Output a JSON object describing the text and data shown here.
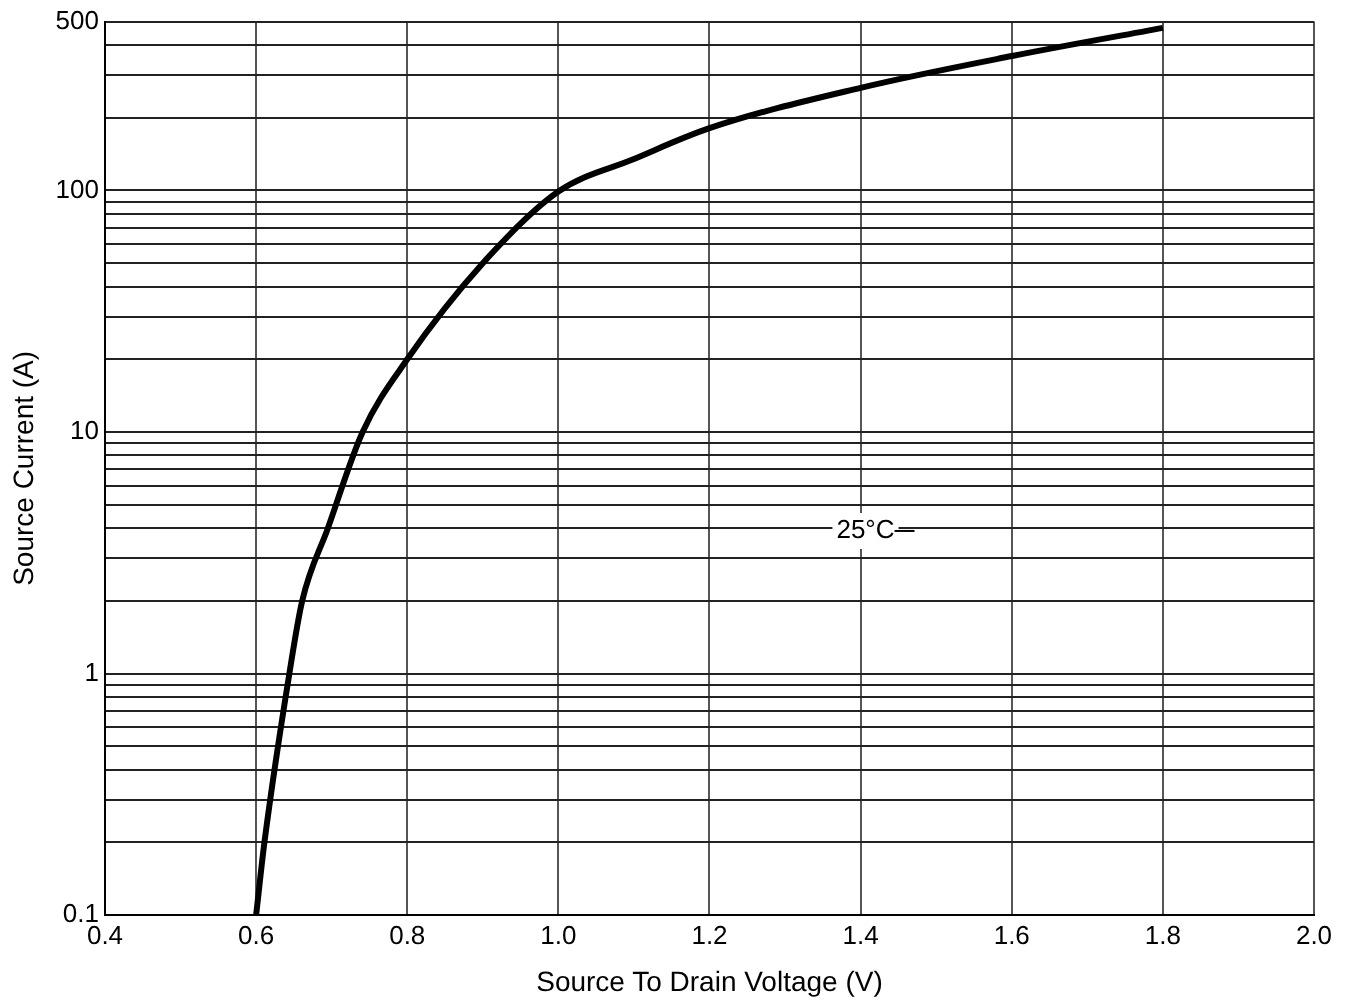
{
  "chart_data": {
    "type": "line",
    "xlabel": "Source To Drain Voltage (V)",
    "ylabel": "Source Current (A)",
    "annotations": [
      "25°C"
    ],
    "log": "y",
    "grid": true,
    "legend": false,
    "marker": "none",
    "line_style": "solid",
    "xlim": [
      0.4,
      2.0
    ],
    "xticks": [
      0.4,
      0.6,
      0.8,
      {
        "value": 1,
        "label": "1.0"
      },
      1.2,
      1.4,
      1.6,
      1.8,
      {
        "value": 2,
        "label": "2.0"
      }
    ],
    "ylim": [
      0.1,
      500
    ],
    "yticks": [
      0.1,
      {
        "value": 0.2,
        "label": null
      },
      {
        "value": 0.3,
        "label": null
      },
      {
        "value": 0.4,
        "label": null
      },
      {
        "value": 0.5,
        "label": null
      },
      {
        "value": 0.6,
        "label": null
      },
      {
        "value": 0.7,
        "label": null
      },
      {
        "value": 0.8,
        "label": null
      },
      {
        "value": 0.9,
        "label": null
      },
      1,
      {
        "value": 2,
        "label": null
      },
      {
        "value": 3,
        "label": null
      },
      {
        "value": 4,
        "label": null
      },
      {
        "value": 5,
        "label": null
      },
      {
        "value": 6,
        "label": null
      },
      {
        "value": 7,
        "label": null
      },
      {
        "value": 8,
        "label": null
      },
      {
        "value": 9,
        "label": null
      },
      10,
      {
        "value": 20,
        "label": null
      },
      {
        "value": 30,
        "label": null
      },
      {
        "value": 40,
        "label": null
      },
      {
        "value": 50,
        "label": null
      },
      {
        "value": 60,
        "label": null
      },
      {
        "value": 70,
        "label": null
      },
      {
        "value": 80,
        "label": null
      },
      {
        "value": 90,
        "label": null
      },
      100,
      {
        "value": 200,
        "label": null
      },
      {
        "value": 300,
        "label": null
      },
      {
        "value": 400,
        "label": null
      },
      500
    ],
    "series": [
      {
        "color": "#000000",
        "x": [
          0.6,
          0.611,
          0.644,
          0.661,
          0.695,
          0.741,
          0.8,
          0.9,
          1.0,
          1.1,
          1.2,
          1.4,
          1.6,
          1.8
        ],
        "values": [
          0.1,
          0.2,
          1,
          2,
          4,
          10,
          20,
          50,
          99,
          135,
          181,
          266,
          360,
          471
        ]
      }
    ]
  }
}
